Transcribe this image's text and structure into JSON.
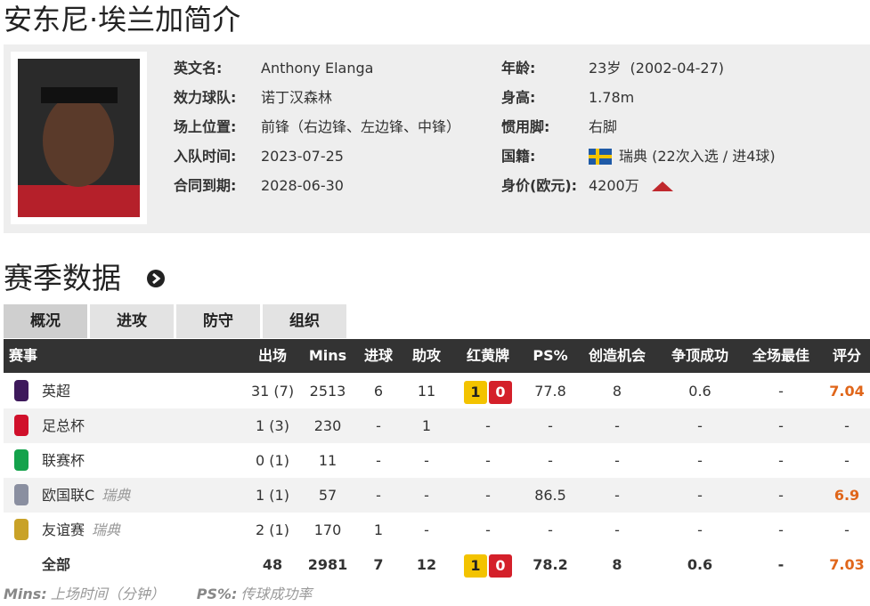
{
  "header": {
    "title": "安东尼·埃兰加简介"
  },
  "profile": {
    "left": [
      {
        "label": "英文名:",
        "value": "Anthony Elanga"
      },
      {
        "label": "效力球队:",
        "value": "诺丁汉森林"
      },
      {
        "label": "场上位置:",
        "value": "前锋（右边锋、左边锋、中锋）"
      },
      {
        "label": "入队时间:",
        "value": "2023-07-25"
      },
      {
        "label": "合同到期:",
        "value": "2028-06-30"
      }
    ],
    "right": [
      {
        "label": "年龄:",
        "value": "23岁  (2002-04-27)"
      },
      {
        "label": "身高:",
        "value": "1.78m"
      },
      {
        "label": "惯用脚:",
        "value": "右脚"
      },
      {
        "label": "国籍:",
        "value": "瑞典 (22次入选 / 进4球)"
      },
      {
        "label": "身价(欧元):",
        "value": "4200万"
      }
    ]
  },
  "stats": {
    "title": "赛季数据",
    "tabs": [
      "概况",
      "进攻",
      "防守",
      "组织"
    ],
    "columns": [
      "赛事",
      "出场",
      "Mins",
      "进球",
      "助攻",
      "红黄牌",
      "PS%",
      "创造机会",
      "争顶成功",
      "全场最佳",
      "评分"
    ],
    "rows": [
      {
        "name": "英超",
        "cells": [
          "31 (7)",
          "2513",
          "6",
          "11",
          [
            "1",
            "0"
          ],
          "77.8",
          "8",
          "0.6",
          "-",
          "7.04"
        ]
      },
      {
        "name": "足总杯",
        "cells": [
          "1 (3)",
          "230",
          "-",
          "1",
          "-",
          "-",
          "-",
          "-",
          "-",
          "-"
        ]
      },
      {
        "name": "联赛杯",
        "cells": [
          "0 (1)",
          "11",
          "-",
          "-",
          "-",
          "-",
          "-",
          "-",
          "-",
          "-"
        ]
      },
      {
        "name": "欧国联C",
        "note": "瑞典",
        "cells": [
          "1 (1)",
          "57",
          "-",
          "-",
          "-",
          "86.5",
          "-",
          "-",
          "-",
          "6.9"
        ]
      },
      {
        "name": "友谊赛",
        "note": "瑞典",
        "cells": [
          "2 (1)",
          "170",
          "1",
          "-",
          "-",
          "-",
          "-",
          "-",
          "-",
          "-"
        ]
      }
    ],
    "total": {
      "name": "全部",
      "cells": [
        "48",
        "2981",
        "7",
        "12",
        [
          "1",
          "0"
        ],
        "78.2",
        "8",
        "0.6",
        "-",
        "7.03"
      ]
    }
  },
  "notes": [
    {
      "term": "Mins:",
      "text": "上场时间（分钟）"
    },
    {
      "term": "PS%:",
      "text": "传球成功率"
    }
  ]
}
